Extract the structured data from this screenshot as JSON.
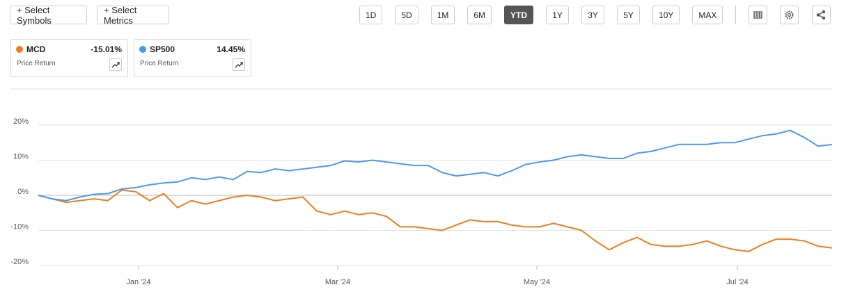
{
  "toolbar": {
    "buttons": [
      "+ Select Symbols",
      "+ Select Metrics"
    ],
    "periods": [
      "1D",
      "5D",
      "1M",
      "6M",
      "YTD",
      "1Y",
      "3Y",
      "5Y",
      "10Y",
      "MAX"
    ],
    "selected_period": "YTD"
  },
  "legend_cards": [
    {
      "change": "-15.01%",
      "metric": "Price Return"
    },
    {
      "change": "14.45%",
      "metric": "Price Return"
    }
  ],
  "chart_data": {
    "type": "line",
    "x": [
      0,
      1,
      2,
      3,
      4,
      5,
      6,
      7,
      8,
      9,
      10,
      11,
      12,
      13,
      14,
      15,
      16,
      17,
      18,
      19,
      20,
      21,
      22,
      23,
      24,
      25,
      26,
      27,
      28,
      29,
      30,
      31,
      32,
      33,
      34,
      35,
      36,
      37,
      38,
      39,
      40,
      41,
      42,
      43,
      44,
      45,
      46,
      47,
      48,
      49,
      50,
      51,
      52,
      53,
      54,
      55,
      56,
      57
    ],
    "xlim": [
      0,
      57
    ],
    "xticks": [
      {
        "value": 7.2,
        "label": "Jan '24"
      },
      {
        "value": 21.5,
        "label": "Mar '24"
      },
      {
        "value": 35.8,
        "label": "May '24"
      },
      {
        "value": 50.2,
        "label": "Jul '24"
      }
    ],
    "ylim": [
      -20,
      30
    ],
    "yticks": [
      {
        "value": -20,
        "label": "-20%"
      },
      {
        "value": -10,
        "label": "-10%"
      },
      {
        "value": 0,
        "label": "0%"
      },
      {
        "value": 10,
        "label": "10%"
      },
      {
        "value": 20,
        "label": "20%"
      }
    ],
    "grid": true,
    "series": [
      {
        "name": "MCD",
        "color": "#f07d1a",
        "values": [
          0,
          -1,
          -2,
          -1.5,
          -1,
          -1.5,
          1.5,
          1,
          -1.5,
          0.5,
          -3.5,
          -1.5,
          -2.5,
          -1.5,
          -0.5,
          0,
          -0.5,
          -1.5,
          -1,
          -0.5,
          -4.5,
          -5.5,
          -4.5,
          -5.5,
          -5,
          -6,
          -9,
          -9,
          -9.5,
          -10,
          -8.5,
          -7,
          -7.5,
          -7.5,
          -8.5,
          -9,
          -9,
          -8,
          -9,
          -10,
          -13,
          -15.5,
          -13.5,
          -12,
          -14,
          -14.5,
          -14.5,
          -14,
          -13,
          -14.5,
          -15.5,
          -16,
          -14,
          -12.5,
          -12.5,
          -13,
          -14.5,
          -15.01
        ]
      },
      {
        "name": "SP500",
        "color": "#4a9af0",
        "values": [
          0,
          -1,
          -1.5,
          -0.5,
          0.3,
          0.5,
          1.8,
          2.2,
          3,
          3.5,
          3.8,
          5,
          4.5,
          5.2,
          4.5,
          6.8,
          6.5,
          7.5,
          7,
          7.5,
          8,
          8.5,
          9.8,
          9.5,
          10,
          9.5,
          9,
          8.5,
          8.5,
          6.5,
          5.5,
          6,
          6.5,
          5.5,
          7,
          8.8,
          9.5,
          10,
          11,
          11.5,
          11,
          10.5,
          10.5,
          12,
          12.5,
          13.5,
          14.5,
          14.5,
          14.5,
          15,
          15,
          16,
          17,
          17.5,
          18.5,
          16.5,
          14,
          14.45
        ]
      }
    ]
  }
}
